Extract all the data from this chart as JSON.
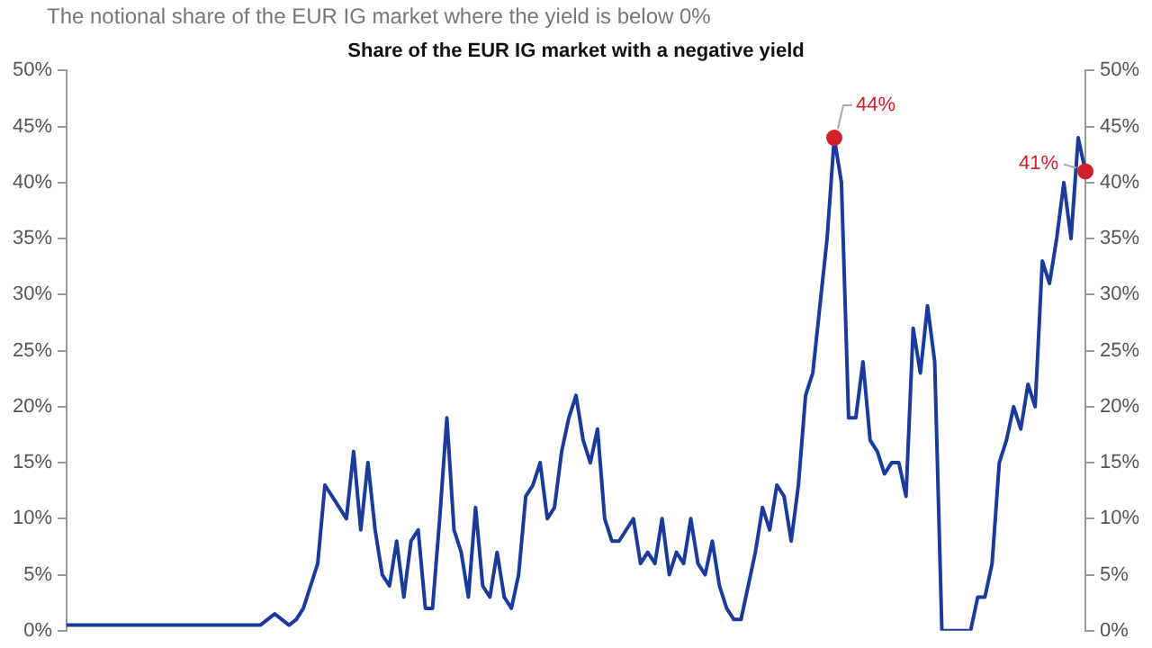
{
  "chart_data": {
    "type": "line",
    "subtitle": "The notional share of the EUR IG market where the yield is below 0%",
    "title": "Share of the EUR IG market with a negative yield",
    "categories": [
      null,
      null,
      null,
      null,
      null,
      null,
      null,
      null,
      null,
      null,
      null,
      null,
      null,
      null,
      null,
      null,
      null,
      null,
      null,
      null,
      null,
      null,
      null,
      null,
      null,
      null,
      null,
      null,
      null,
      null,
      null,
      null,
      null,
      null,
      null,
      null,
      null,
      null,
      null,
      null,
      null,
      null,
      null,
      null,
      null,
      null,
      null,
      null,
      null,
      null,
      null,
      null,
      null,
      null,
      null,
      null,
      null,
      null,
      null,
      null,
      null,
      null,
      null,
      null,
      null,
      null,
      null,
      null,
      null,
      null,
      null,
      null,
      null,
      null,
      null,
      null,
      null,
      null,
      null,
      null,
      null,
      null,
      null,
      null,
      null,
      null,
      null,
      null,
      null,
      null,
      null,
      null,
      null,
      null,
      null,
      null,
      null,
      null,
      null,
      null,
      null,
      null,
      null,
      null,
      null,
      null,
      null,
      null,
      null,
      null,
      null,
      null,
      null,
      null,
      null,
      null,
      null,
      null,
      null,
      null,
      null,
      null,
      null,
      null,
      null,
      null,
      null,
      null,
      null,
      null,
      null,
      null,
      null,
      null,
      null,
      null,
      null,
      null,
      null,
      null,
      null,
      null,
      null
    ],
    "series": [
      {
        "color": "#1a3b9c",
        "values": [
          0.5,
          0.5,
          0.5,
          0.5,
          0.5,
          0.5,
          0.5,
          0.5,
          0.5,
          0.5,
          0.5,
          0.5,
          0.5,
          0.5,
          0.5,
          0.5,
          0.5,
          0.5,
          0.5,
          0.5,
          0.5,
          0.5,
          0.5,
          0.5,
          0.5,
          0.5,
          0.5,
          0.5,
          1,
          1.5,
          1,
          0.5,
          1,
          2,
          4,
          6,
          13,
          12,
          11,
          10,
          16,
          9,
          15,
          9,
          5,
          4,
          8,
          3,
          8,
          9,
          2,
          2,
          10,
          19,
          9,
          7,
          3,
          11,
          4,
          3,
          7,
          3,
          2,
          5,
          12,
          13,
          15,
          10,
          11,
          16,
          19,
          21,
          17,
          15,
          18,
          10,
          8,
          8,
          9,
          10,
          6,
          7,
          6,
          10,
          5,
          7,
          6,
          10,
          6,
          5,
          8,
          4,
          2,
          1,
          1,
          4,
          7,
          11,
          9,
          13,
          12,
          8,
          13,
          21,
          23,
          29,
          35,
          44,
          40,
          19,
          19,
          24,
          17,
          16,
          14,
          15,
          15,
          12,
          27,
          23,
          29,
          24,
          0,
          0,
          0,
          0,
          0,
          3,
          3,
          6,
          15,
          17,
          20,
          18,
          22,
          20,
          33,
          31,
          35,
          40,
          35,
          44,
          41
        ],
        "value_labels": [
          null,
          null,
          null,
          null,
          null,
          null,
          null,
          null,
          null,
          null,
          null,
          null,
          null,
          null,
          null,
          null,
          null,
          null,
          null,
          null,
          null,
          null,
          null,
          null,
          null,
          null,
          null,
          null,
          null,
          null,
          null,
          null,
          null,
          null,
          null,
          null,
          null,
          null,
          null,
          null,
          null,
          null,
          null,
          null,
          null,
          null,
          null,
          null,
          null,
          null,
          null,
          null,
          null,
          null,
          null,
          null,
          null,
          null,
          null,
          null,
          null,
          null,
          null,
          null,
          null,
          null,
          null,
          null,
          null,
          null,
          null,
          null,
          null,
          null,
          null,
          null,
          null,
          null,
          null,
          null,
          null,
          null,
          null,
          null,
          null,
          null,
          null,
          null,
          null,
          null,
          null,
          null,
          null,
          null,
          null,
          null,
          null,
          null,
          null,
          null,
          null,
          null,
          null,
          null,
          null,
          null,
          null,
          "44%",
          null,
          null,
          null,
          null,
          null,
          null,
          null,
          null,
          null,
          null,
          null,
          null,
          null,
          null,
          null,
          null,
          null,
          null,
          null,
          null,
          null,
          null,
          null,
          null,
          null,
          null,
          null,
          null,
          null,
          null,
          null,
          null,
          null,
          null,
          "41%"
        ]
      }
    ],
    "ylim": [
      0,
      50
    ],
    "yticks": [
      {
        "value": 0,
        "label": "0%"
      },
      {
        "value": 5,
        "label": "5%"
      },
      {
        "value": 10,
        "label": "10%"
      },
      {
        "value": 15,
        "label": "15%"
      },
      {
        "value": 20,
        "label": "20%"
      },
      {
        "value": 25,
        "label": "25%"
      },
      {
        "value": 30,
        "label": "30%"
      },
      {
        "value": 35,
        "label": "35%"
      },
      {
        "value": 40,
        "label": "40%"
      },
      {
        "value": 45,
        "label": "45%"
      },
      {
        "value": 50,
        "label": "50%"
      }
    ],
    "y2lim": [
      0,
      50
    ],
    "y2ticks": [
      {
        "value": 0,
        "label": "0%"
      },
      {
        "value": 5,
        "label": "5%"
      },
      {
        "value": 10,
        "label": "10%"
      },
      {
        "value": 15,
        "label": "15%"
      },
      {
        "value": 20,
        "label": "20%"
      },
      {
        "value": 25,
        "label": "25%"
      },
      {
        "value": 30,
        "label": "30%"
      },
      {
        "value": 35,
        "label": "35%"
      },
      {
        "value": 40,
        "label": "40%"
      },
      {
        "value": 45,
        "label": "45%"
      },
      {
        "value": 50,
        "label": "50%"
      }
    ],
    "tick_labels": "y",
    "grid": false,
    "legend": false,
    "marker": "none",
    "line_style": "solid"
  }
}
